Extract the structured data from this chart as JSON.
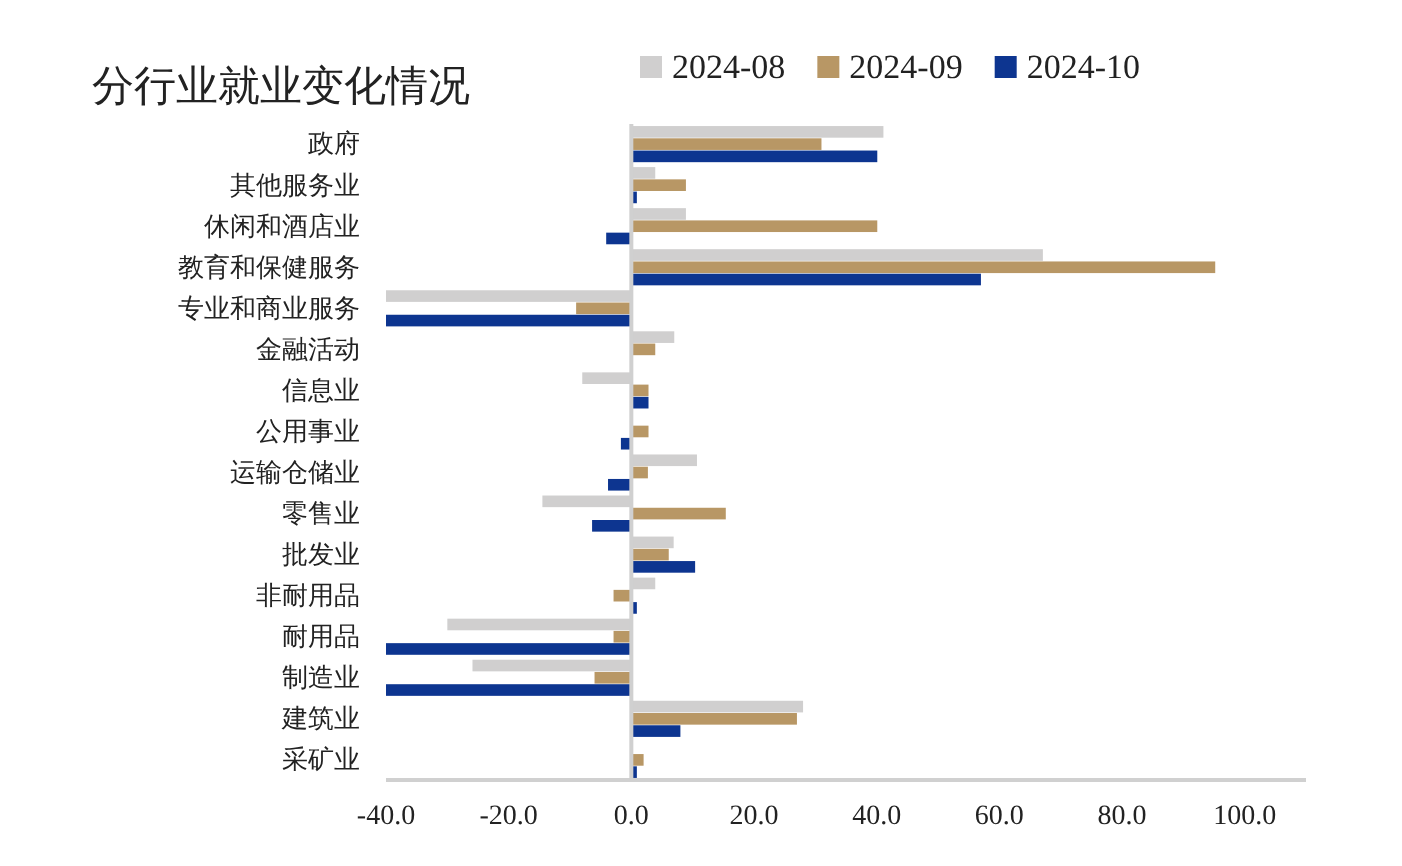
{
  "chart_data": {
    "type": "bar",
    "orientation": "horizontal",
    "title": "分行业就业变化情况",
    "categories": [
      "政府",
      "其他服务业",
      "休闲和酒店业",
      "教育和保健服务",
      "专业和商业服务",
      "金融活动",
      "信息业",
      "公用事业",
      "运输仓储业",
      "零售业",
      "批发业",
      "非耐用品",
      "耐用品",
      "制造业",
      "建筑业",
      "采矿业"
    ],
    "series": [
      {
        "name": "2024-08",
        "color": "#d0cfcf",
        "values": [
          41.1,
          3.9,
          8.9,
          67.1,
          -40,
          7.0,
          -8.0,
          0,
          10.7,
          -14.5,
          6.9,
          3.9,
          -30.0,
          -25.9,
          28.0,
          0
        ]
      },
      {
        "name": "2024-09",
        "color": "#b89765",
        "values": [
          31.0,
          8.9,
          40.1,
          95.2,
          -9.0,
          3.9,
          2.8,
          2.8,
          2.7,
          15.4,
          6.1,
          -2.9,
          -2.9,
          -6.0,
          27.0,
          2.0
        ]
      },
      {
        "name": "2024-10",
        "color": "#0d3590",
        "values": [
          40.1,
          0.9,
          -4.1,
          57.0,
          -40,
          0,
          2.8,
          -1.7,
          -3.8,
          -6.4,
          10.4,
          0.9,
          -40,
          -40,
          8.0,
          0.9
        ]
      }
    ],
    "xlim": [
      -40,
      110
    ],
    "xticks": [
      {
        "value": -40,
        "label": "-40.0"
      },
      {
        "value": -20,
        "label": "-20.0"
      },
      {
        "value": 0,
        "label": "0.0"
      },
      {
        "value": 20,
        "label": "20.0"
      },
      {
        "value": 40,
        "label": "40.0"
      },
      {
        "value": 60,
        "label": "60.0"
      },
      {
        "value": 80,
        "label": "80.0"
      },
      {
        "value": 100,
        "label": "100.0"
      }
    ],
    "legend": "top"
  }
}
